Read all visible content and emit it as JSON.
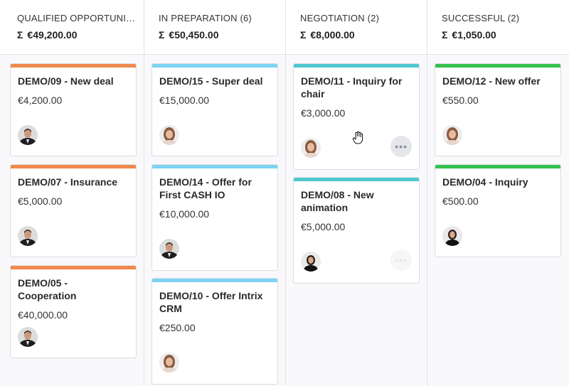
{
  "colors": {
    "orange": "#f0894c",
    "light_blue": "#7dd3f2",
    "teal": "#4ec7cf",
    "green": "#33c24d"
  },
  "columns": [
    {
      "title": "QUALIFIED OPPORTUNIT...",
      "sum": "€49,200.00",
      "cards": [
        {
          "title": "DEMO/09 - New deal",
          "amount": "€4,200.00",
          "avatar": "man-avatar"
        },
        {
          "title": "DEMO/07 - Insurance",
          "amount": "€5,000.00",
          "avatar": "man-avatar"
        },
        {
          "title": "DEMO/05 - Cooperation",
          "amount": "€40,000.00",
          "avatar": "man-avatar"
        }
      ]
    },
    {
      "title": "IN PREPARATION (6)",
      "sum": "€50,450.00",
      "cards": [
        {
          "title": "DEMO/15 - Super deal",
          "amount": "€15,000.00",
          "avatar": "woman-avatar"
        },
        {
          "title": "DEMO/14 - Offer for First CASH IO",
          "amount": "€10,000.00",
          "avatar": "man-avatar"
        },
        {
          "title": "DEMO/10 - Offer Intrix CRM",
          "amount": "€250.00",
          "avatar": "woman-avatar"
        }
      ]
    },
    {
      "title": "NEGOTIATION (2)",
      "sum": "€8,000.00",
      "cards": [
        {
          "title": "DEMO/11 - Inquiry for chair",
          "amount": "€3,000.00",
          "avatar": "woman-avatar"
        },
        {
          "title": "DEMO/08 - New animation",
          "amount": "€5,000.00",
          "avatar": "woman-dark-avatar"
        }
      ]
    },
    {
      "title": "SUCCESSFUL (2)",
      "sum": "€1,050.00",
      "cards": [
        {
          "title": "DEMO/12 - New offer",
          "amount": "€550.00",
          "avatar": "woman-avatar"
        },
        {
          "title": "DEMO/04 - Inquiry",
          "amount": "€500.00",
          "avatar": "woman-dark-avatar"
        }
      ]
    }
  ],
  "sigma": "Σ",
  "more_label": "•••"
}
